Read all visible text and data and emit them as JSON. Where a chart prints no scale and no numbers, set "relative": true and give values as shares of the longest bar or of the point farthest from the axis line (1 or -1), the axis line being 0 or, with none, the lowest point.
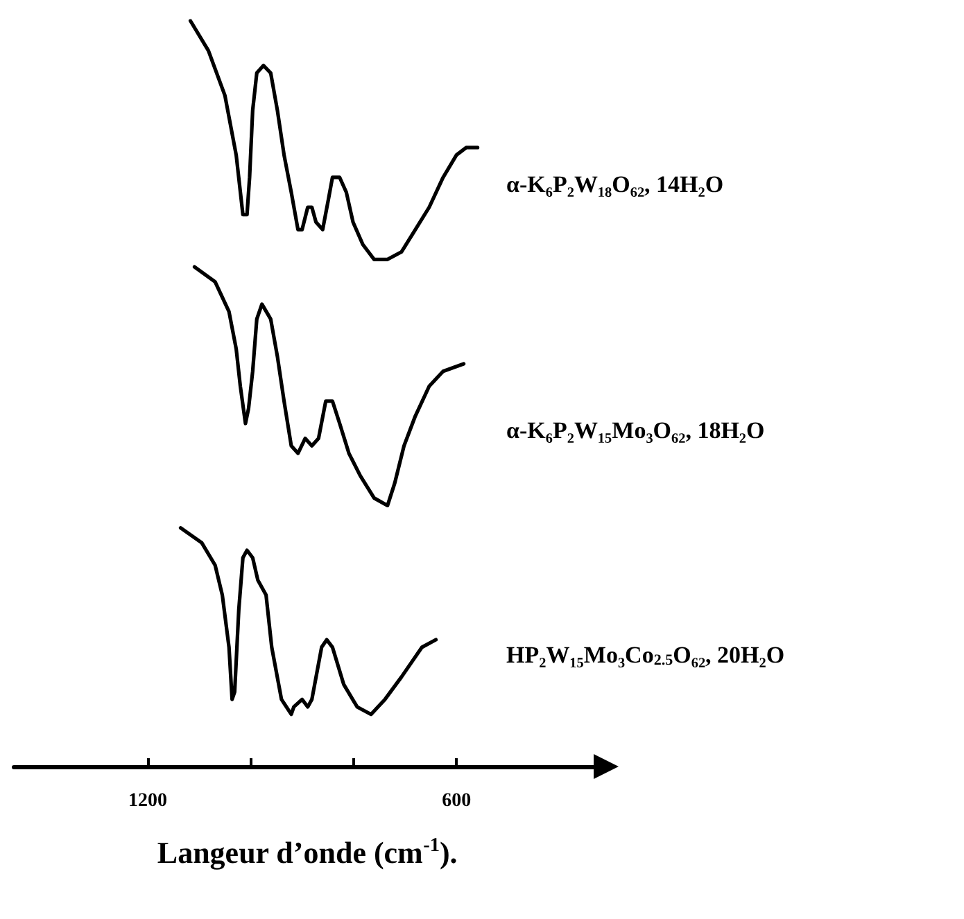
{
  "chart_data": {
    "type": "line",
    "relative": true,
    "xlim": [
      1460,
      320
    ],
    "legend": false,
    "grid": false,
    "marker": "none",
    "xlabel": "Langeur d’onde (cm$^{-1}$).",
    "xticks": [
      1200,
      {
        "value": 1000,
        "label": null
      },
      {
        "value": 800,
        "label": null
      },
      600
    ],
    "series": [
      {
        "name": "α-K₆P₂W₁₈O₆₂, 14H₂O",
        "color": "#000000",
        "x": [
          1117,
          1082,
          1050,
          1028,
          1015,
          1007,
          1002,
          996,
          988,
          975,
          961,
          948,
          935,
          921,
          908,
          900,
          889,
          881,
          873,
          860,
          849,
          841,
          827,
          814,
          801,
          782,
          760,
          734,
          707,
          680,
          653,
          626,
          600,
          581,
          559
        ],
        "values": [
          1,
          0.96,
          0.9,
          0.82,
          0.74,
          0.74,
          0.79,
          0.88,
          0.93,
          0.94,
          0.93,
          0.88,
          0.82,
          0.77,
          0.72,
          0.72,
          0.75,
          0.75,
          0.73,
          0.72,
          0.76,
          0.79,
          0.79,
          0.77,
          0.73,
          0.7,
          0.68,
          0.68,
          0.69,
          0.72,
          0.75,
          0.79,
          0.82,
          0.83,
          0.83
        ]
      },
      {
        "name": "α-K₆P₂W₁₅Mo₃O₆₂, 18H₂O",
        "color": "#000000",
        "x": [
          1109,
          1069,
          1042,
          1028,
          1020,
          1012,
          1010,
          1004,
          996,
          988,
          978,
          961,
          948,
          935,
          921,
          908,
          894,
          881,
          868,
          854,
          841,
          827,
          809,
          787,
          760,
          734,
          720,
          702,
          680,
          653,
          626,
          586
        ],
        "values": [
          0.67,
          0.65,
          0.61,
          0.56,
          0.51,
          0.47,
          0.46,
          0.48,
          0.53,
          0.6,
          0.62,
          0.6,
          0.55,
          0.49,
          0.43,
          0.42,
          0.44,
          0.43,
          0.44,
          0.49,
          0.49,
          0.46,
          0.42,
          0.39,
          0.36,
          0.35,
          0.38,
          0.43,
          0.47,
          0.51,
          0.53,
          0.54
        ]
      },
      {
        "name": "HP₂W₁₅Mo₃Co$_{2.5}$O₆₂, 20H₂O",
        "color": "#000000",
        "x": [
          1136,
          1095,
          1069,
          1055,
          1042,
          1036,
          1031,
          1023,
          1015,
          1007,
          996,
          986,
          970,
          959,
          940,
          921,
          916,
          900,
          889,
          881,
          862,
          852,
          841,
          819,
          793,
          766,
          739,
          707,
          667,
          640
        ],
        "values": [
          0.32,
          0.3,
          0.27,
          0.23,
          0.16,
          0.09,
          0.1,
          0.21,
          0.28,
          0.29,
          0.28,
          0.25,
          0.23,
          0.16,
          0.09,
          0.07,
          0.08,
          0.09,
          0.08,
          0.09,
          0.16,
          0.17,
          0.16,
          0.11,
          0.08,
          0.07,
          0.09,
          0.12,
          0.16,
          0.17
        ]
      }
    ]
  }
}
